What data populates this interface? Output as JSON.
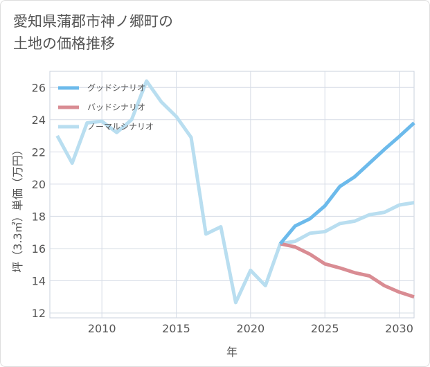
{
  "title": {
    "line1": "愛知県蒲郡市神ノ郷町の",
    "line2": "土地の価格推移"
  },
  "chart_data": {
    "type": "line",
    "xlabel": "年",
    "ylabel": "坪（3.3㎡）単価（万円）",
    "xlim": [
      2006.5,
      2031
    ],
    "ylim": [
      11.7,
      27
    ],
    "xticks": [
      2010,
      2015,
      2020,
      2025,
      2030
    ],
    "yticks": [
      12,
      14,
      16,
      18,
      20,
      22,
      24,
      26
    ],
    "legend_position": "top-left",
    "series": [
      {
        "name": "グッドシナリオ",
        "color": "#6cbaeb",
        "x": [
          2022,
          2023,
          2024,
          2025,
          2026,
          2027,
          2028,
          2029,
          2030,
          2031
        ],
        "values": [
          16.3,
          17.4,
          17.85,
          18.65,
          19.85,
          20.45,
          21.3,
          22.15,
          22.95,
          23.8
        ]
      },
      {
        "name": "バッドシナリオ",
        "color": "#d98c93",
        "x": [
          2022,
          2023,
          2024,
          2025,
          2026,
          2027,
          2028,
          2029,
          2030,
          2031
        ],
        "values": [
          16.3,
          16.1,
          15.65,
          15.05,
          14.8,
          14.5,
          14.3,
          13.7,
          13.3,
          13.0
        ]
      },
      {
        "name": "ノーマルシナリオ",
        "color": "#b9def0",
        "x": [
          2007,
          2008,
          2009,
          2010,
          2011,
          2012,
          2013,
          2014,
          2015,
          2016,
          2017,
          2018,
          2019,
          2020,
          2021,
          2022,
          2023,
          2024,
          2025,
          2026,
          2027,
          2028,
          2029,
          2030,
          2031
        ],
        "values": [
          23.0,
          21.3,
          23.8,
          23.9,
          23.2,
          24.0,
          26.4,
          25.1,
          24.2,
          22.9,
          16.9,
          17.35,
          12.65,
          14.65,
          13.7,
          16.3,
          16.45,
          16.95,
          17.05,
          17.55,
          17.7,
          18.1,
          18.25,
          18.7,
          18.85
        ]
      }
    ]
  }
}
